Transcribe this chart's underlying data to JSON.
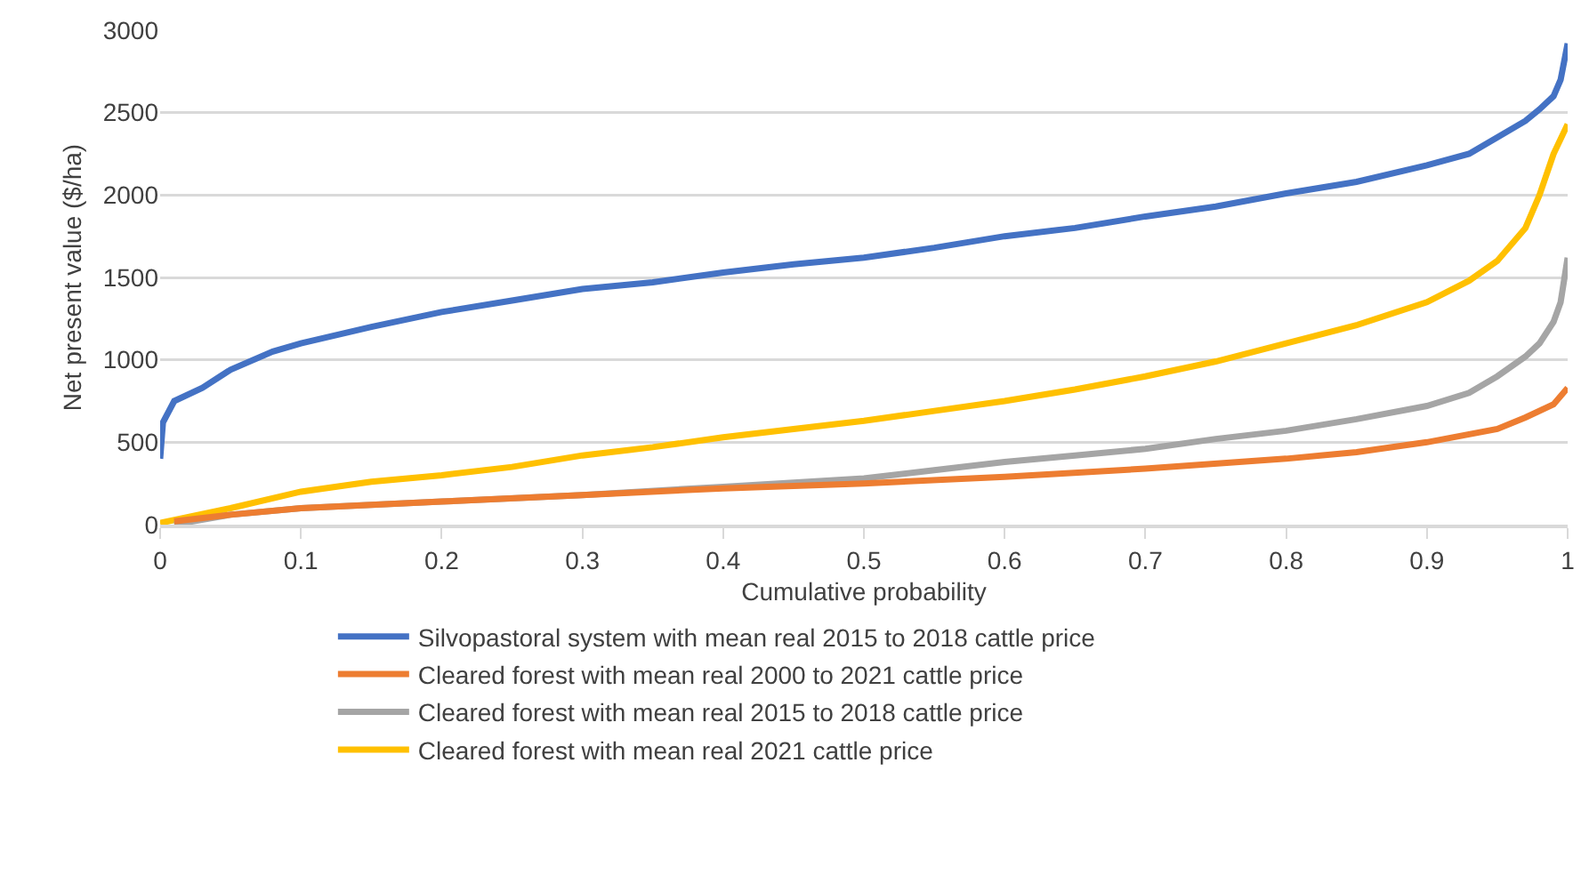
{
  "chart_data": {
    "type": "line",
    "xlabel": "Cumulative probability",
    "ylabel": "Net present value ($/ha)",
    "xlim": [
      0,
      1
    ],
    "xticks": [
      0,
      0.1,
      0.2,
      0.3,
      0.4,
      0.5,
      0.6,
      0.7,
      0.8,
      0.9,
      1
    ],
    "ylim": [
      0,
      3000
    ],
    "yticks": [
      0,
      500,
      1000,
      1500,
      2000,
      2500,
      3000
    ],
    "grid": "y",
    "legend": "bottom",
    "marker": "none",
    "line_style": "solid",
    "series": [
      {
        "name": "Silvopastoral system with mean real 2015 to 2018 cattle price",
        "color": "#4472c4",
        "x": [
          0,
          0.002,
          0.01,
          0.03,
          0.05,
          0.08,
          0.1,
          0.15,
          0.2,
          0.25,
          0.3,
          0.35,
          0.4,
          0.45,
          0.5,
          0.55,
          0.6,
          0.65,
          0.7,
          0.75,
          0.8,
          0.85,
          0.9,
          0.93,
          0.95,
          0.97,
          0.98,
          0.99,
          0.995,
          1
        ],
        "values": [
          400,
          620,
          750,
          830,
          940,
          1050,
          1100,
          1200,
          1290,
          1360,
          1430,
          1470,
          1530,
          1580,
          1620,
          1680,
          1750,
          1800,
          1870,
          1930,
          2010,
          2080,
          2180,
          2250,
          2350,
          2450,
          2520,
          2600,
          2700,
          2920
        ]
      },
      {
        "name": "Cleared forest with mean real 2000 to 2021 cattle price",
        "color": "#ed7d31",
        "x": [
          0.01,
          0.05,
          0.1,
          0.2,
          0.3,
          0.4,
          0.5,
          0.6,
          0.7,
          0.8,
          0.85,
          0.9,
          0.95,
          0.97,
          0.99,
          1
        ],
        "values": [
          20,
          60,
          100,
          140,
          180,
          220,
          250,
          290,
          340,
          400,
          440,
          500,
          580,
          650,
          730,
          830
        ]
      },
      {
        "name": "Cleared forest with mean real 2015 to 2018 cattle price",
        "color": "#a5a5a5",
        "x": [
          0.01,
          0.05,
          0.1,
          0.2,
          0.3,
          0.4,
          0.5,
          0.55,
          0.6,
          0.65,
          0.7,
          0.75,
          0.8,
          0.85,
          0.9,
          0.93,
          0.95,
          0.97,
          0.98,
          0.99,
          0.995,
          1
        ],
        "values": [
          0,
          60,
          100,
          140,
          180,
          230,
          280,
          330,
          380,
          420,
          460,
          520,
          570,
          640,
          720,
          800,
          900,
          1020,
          1100,
          1230,
          1350,
          1620
        ]
      },
      {
        "name": "Cleared forest with mean real 2021 cattle price",
        "color": "#ffc000",
        "x": [
          0,
          0.05,
          0.1,
          0.15,
          0.2,
          0.25,
          0.3,
          0.35,
          0.4,
          0.45,
          0.5,
          0.55,
          0.6,
          0.65,
          0.7,
          0.75,
          0.8,
          0.85,
          0.9,
          0.93,
          0.95,
          0.97,
          0.98,
          0.99,
          1
        ],
        "values": [
          10,
          100,
          200,
          260,
          300,
          350,
          420,
          470,
          530,
          580,
          630,
          690,
          750,
          820,
          900,
          990,
          1100,
          1210,
          1350,
          1480,
          1600,
          1800,
          2000,
          2250,
          2430
        ]
      }
    ]
  }
}
